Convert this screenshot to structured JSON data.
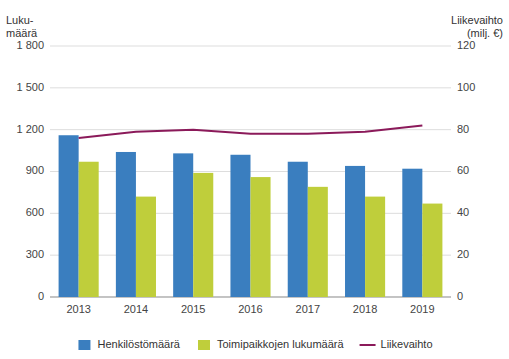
{
  "chart_data": {
    "type": "bar",
    "categories": [
      "2013",
      "2014",
      "2015",
      "2016",
      "2017",
      "2018",
      "2019"
    ],
    "series": [
      {
        "name": "Henkilöstömäärä",
        "color": "#3A7EBF",
        "values": [
          1160,
          1040,
          1030,
          1020,
          970,
          940,
          920
        ]
      },
      {
        "name": "Toimipaikkojen lukumäärä",
        "color": "#BFCE3B",
        "values": [
          970,
          720,
          890,
          860,
          790,
          720,
          670
        ]
      },
      {
        "name": "Liikevaihto",
        "color": "#8B1A5A",
        "type": "line",
        "axis": "y2",
        "values": [
          76,
          79,
          80,
          78,
          78,
          79,
          82
        ]
      }
    ],
    "ylabel": "Luku-\nmäärä",
    "y2label": "Liikevaihto\n(milj. €)",
    "ylim": [
      0,
      1800
    ],
    "yticks": [
      0,
      300,
      600,
      900,
      {
        "value": 1200,
        "label": "1 200"
      },
      {
        "value": 1500,
        "label": "1 500"
      },
      {
        "value": 1800,
        "label": "1 800"
      }
    ],
    "y2lim": [
      0,
      120
    ],
    "y2ticks": [
      0,
      20,
      40,
      60,
      80,
      100,
      120
    ],
    "grid": true,
    "legend": "bottom"
  }
}
